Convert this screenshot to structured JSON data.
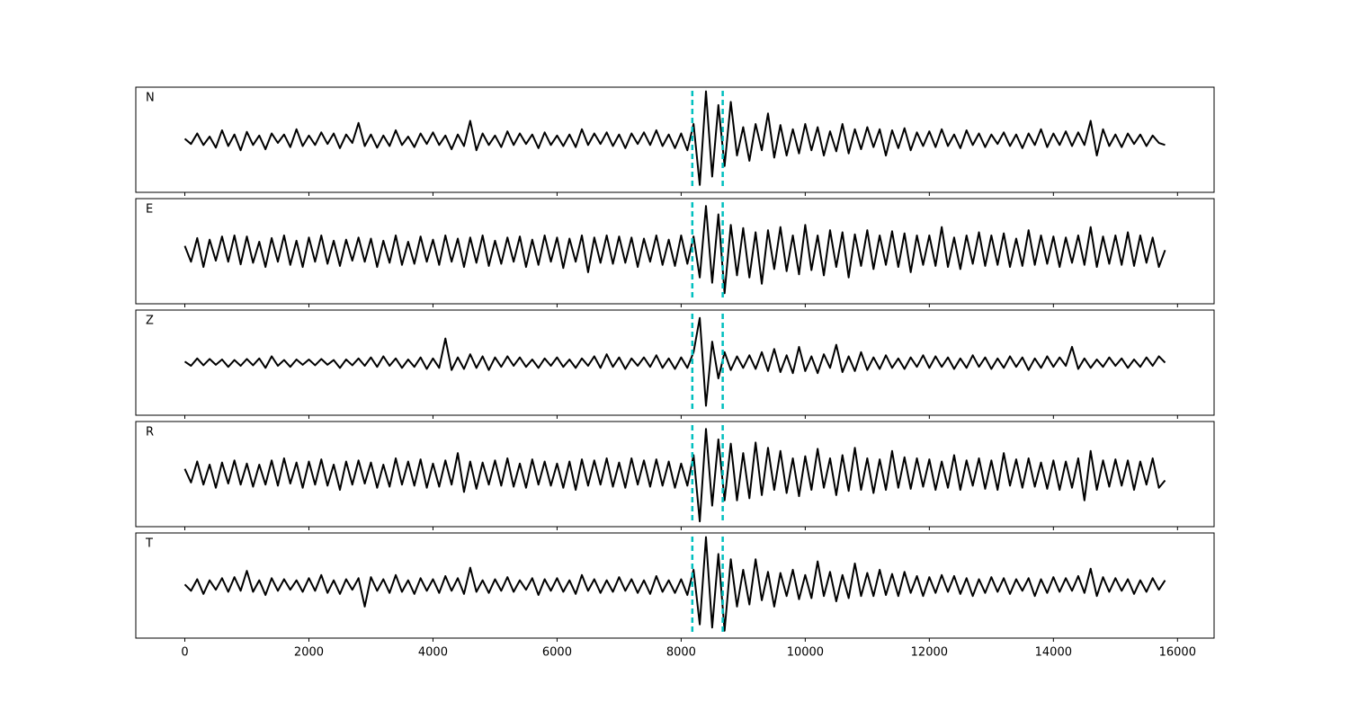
{
  "chart_data": {
    "type": "line",
    "layout": "stacked",
    "x": [
      0,
      100,
      200,
      300,
      400,
      500,
      600,
      700,
      800,
      900,
      1000,
      1100,
      1200,
      1300,
      1400,
      1500,
      1600,
      1700,
      1800,
      1900,
      2000,
      2100,
      2200,
      2300,
      2400,
      2500,
      2600,
      2700,
      2800,
      2900,
      3000,
      3100,
      3200,
      3300,
      3400,
      3500,
      3600,
      3700,
      3800,
      3900,
      4000,
      4100,
      4200,
      4300,
      4400,
      4500,
      4600,
      4700,
      4800,
      4900,
      5000,
      5100,
      5200,
      5300,
      5400,
      5500,
      5600,
      5700,
      5800,
      5900,
      6000,
      6100,
      6200,
      6300,
      6400,
      6500,
      6600,
      6700,
      6800,
      6900,
      7000,
      7100,
      7200,
      7300,
      7400,
      7500,
      7600,
      7700,
      7800,
      7900,
      8000,
      8100,
      8200,
      8300,
      8400,
      8500,
      8600,
      8700,
      8800,
      8900,
      9000,
      9100,
      9200,
      9300,
      9400,
      9500,
      9600,
      9700,
      9800,
      9900,
      10000,
      10100,
      10200,
      10300,
      10400,
      10500,
      10600,
      10700,
      10800,
      10900,
      11000,
      11100,
      11200,
      11300,
      11400,
      11500,
      11600,
      11700,
      11800,
      11900,
      12000,
      12100,
      12200,
      12300,
      12400,
      12500,
      12600,
      12700,
      12800,
      12900,
      13000,
      13100,
      13200,
      13300,
      13400,
      13500,
      13600,
      13700,
      13800,
      13900,
      14000,
      14100,
      14200,
      14300,
      14400,
      14500,
      14600,
      14700,
      14800,
      14900,
      15000,
      15100,
      15200,
      15300,
      15400,
      15500,
      15600,
      15700,
      15800
    ],
    "xlim": [
      -790,
      16590
    ],
    "xticks": [
      0,
      2000,
      4000,
      6000,
      8000,
      10000,
      12000,
      14000,
      16000
    ],
    "ylim": [
      -1,
      1
    ],
    "markers": [
      8180,
      8670
    ],
    "marker_color": "#00bfbf",
    "series": [
      {
        "name": "N",
        "color": "#000000",
        "values": [
          0.02,
          -0.08,
          0.12,
          -0.1,
          0.06,
          -0.15,
          0.18,
          -0.12,
          0.1,
          -0.2,
          0.15,
          -0.1,
          0.08,
          -0.18,
          0.12,
          -0.06,
          0.1,
          -0.14,
          0.2,
          -0.12,
          0.08,
          -0.1,
          0.14,
          -0.08,
          0.12,
          -0.16,
          0.1,
          -0.06,
          0.32,
          -0.12,
          0.1,
          -0.15,
          0.08,
          -0.12,
          0.18,
          -0.1,
          0.06,
          -0.14,
          0.12,
          -0.08,
          0.14,
          -0.1,
          0.08,
          -0.18,
          0.1,
          -0.12,
          0.36,
          -0.2,
          0.12,
          -0.1,
          0.08,
          -0.14,
          0.16,
          -0.1,
          0.12,
          -0.08,
          0.1,
          -0.16,
          0.14,
          -0.1,
          0.08,
          -0.12,
          0.1,
          -0.14,
          0.2,
          -0.1,
          0.12,
          -0.08,
          0.14,
          -0.12,
          0.1,
          -0.16,
          0.12,
          -0.08,
          0.14,
          -0.1,
          0.18,
          -0.12,
          0.1,
          -0.16,
          0.12,
          -0.2,
          0.3,
          -0.86,
          0.92,
          -0.7,
          0.66,
          -0.5,
          0.72,
          -0.3,
          0.24,
          -0.4,
          0.3,
          -0.2,
          0.5,
          -0.34,
          0.28,
          -0.3,
          0.2,
          -0.26,
          0.3,
          -0.2,
          0.24,
          -0.3,
          0.16,
          -0.22,
          0.3,
          -0.26,
          0.2,
          -0.18,
          0.24,
          -0.14,
          0.2,
          -0.3,
          0.18,
          -0.16,
          0.22,
          -0.2,
          0.14,
          -0.12,
          0.16,
          -0.14,
          0.2,
          -0.12,
          0.1,
          -0.16,
          0.18,
          -0.1,
          0.12,
          -0.14,
          0.1,
          -0.08,
          0.14,
          -0.12,
          0.1,
          -0.16,
          0.12,
          -0.1,
          0.2,
          -0.14,
          0.12,
          -0.1,
          0.16,
          -0.12,
          0.14,
          -0.1,
          0.36,
          -0.3,
          0.2,
          -0.12,
          0.1,
          -0.14,
          0.12,
          -0.08,
          0.1,
          -0.12,
          0.08,
          -0.06,
          -0.1
        ]
      },
      {
        "name": "E",
        "color": "#000000",
        "values": [
          0.1,
          -0.2,
          0.25,
          -0.3,
          0.22,
          -0.18,
          0.28,
          -0.2,
          0.3,
          -0.25,
          0.28,
          -0.22,
          0.18,
          -0.3,
          0.25,
          -0.2,
          0.3,
          -0.26,
          0.2,
          -0.3,
          0.26,
          -0.2,
          0.3,
          -0.24,
          0.2,
          -0.28,
          0.22,
          -0.18,
          0.26,
          -0.2,
          0.24,
          -0.3,
          0.2,
          -0.22,
          0.3,
          -0.26,
          0.18,
          -0.24,
          0.28,
          -0.2,
          0.22,
          -0.26,
          0.3,
          -0.2,
          0.24,
          -0.3,
          0.26,
          -0.22,
          0.3,
          -0.28,
          0.2,
          -0.24,
          0.26,
          -0.2,
          0.28,
          -0.3,
          0.22,
          -0.26,
          0.3,
          -0.2,
          0.26,
          -0.32,
          0.24,
          -0.2,
          0.3,
          -0.4,
          0.26,
          -0.22,
          0.3,
          -0.24,
          0.28,
          -0.22,
          0.26,
          -0.3,
          0.24,
          -0.2,
          0.3,
          -0.26,
          0.22,
          -0.28,
          0.3,
          -0.24,
          0.28,
          -0.5,
          0.86,
          -0.6,
          0.7,
          -0.8,
          0.5,
          -0.46,
          0.44,
          -0.5,
          0.36,
          -0.62,
          0.4,
          -0.34,
          0.46,
          -0.38,
          0.3,
          -0.44,
          0.5,
          -0.36,
          0.3,
          -0.46,
          0.4,
          -0.3,
          0.36,
          -0.5,
          0.32,
          -0.28,
          0.4,
          -0.34,
          0.3,
          -0.26,
          0.38,
          -0.3,
          0.34,
          -0.4,
          0.3,
          -0.26,
          0.3,
          -0.28,
          0.46,
          -0.3,
          0.26,
          -0.34,
          0.3,
          -0.24,
          0.36,
          -0.28,
          0.3,
          -0.26,
          0.34,
          -0.3,
          0.24,
          -0.28,
          0.4,
          -0.26,
          0.3,
          -0.24,
          0.28,
          -0.3,
          0.26,
          -0.22,
          0.3,
          -0.26,
          0.46,
          -0.3,
          0.28,
          -0.24,
          0.3,
          -0.26,
          0.36,
          -0.28,
          0.3,
          -0.22,
          0.26,
          -0.3,
          0.02
        ]
      },
      {
        "name": "Z",
        "color": "#000000",
        "values": [
          0.02,
          -0.06,
          0.08,
          -0.05,
          0.07,
          -0.04,
          0.06,
          -0.08,
          0.05,
          -0.06,
          0.07,
          -0.05,
          0.08,
          -0.1,
          0.12,
          -0.06,
          0.05,
          -0.08,
          0.06,
          -0.04,
          0.06,
          -0.05,
          0.07,
          -0.04,
          0.05,
          -0.1,
          0.06,
          -0.05,
          0.08,
          -0.06,
          0.1,
          -0.08,
          0.12,
          -0.06,
          0.08,
          -0.1,
          0.06,
          -0.08,
          0.1,
          -0.12,
          0.08,
          -0.1,
          0.46,
          -0.14,
          0.1,
          -0.12,
          0.16,
          -0.1,
          0.12,
          -0.14,
          0.1,
          -0.08,
          0.12,
          -0.06,
          0.1,
          -0.08,
          0.06,
          -0.1,
          0.08,
          -0.06,
          0.1,
          -0.08,
          0.06,
          -0.1,
          0.08,
          -0.06,
          0.12,
          -0.1,
          0.16,
          -0.08,
          0.1,
          -0.12,
          0.08,
          -0.06,
          0.1,
          -0.08,
          0.14,
          -0.1,
          0.08,
          -0.12,
          0.1,
          -0.1,
          0.2,
          0.85,
          -0.82,
          0.4,
          -0.3,
          0.2,
          -0.14,
          0.12,
          -0.1,
          0.14,
          -0.12,
          0.2,
          -0.16,
          0.26,
          -0.18,
          0.14,
          -0.2,
          0.3,
          -0.16,
          0.12,
          -0.2,
          0.16,
          -0.1,
          0.34,
          -0.18,
          0.12,
          -0.16,
          0.2,
          -0.14,
          0.1,
          -0.12,
          0.14,
          -0.1,
          0.08,
          -0.12,
          0.1,
          -0.08,
          0.14,
          -0.1,
          0.12,
          -0.08,
          0.1,
          -0.12,
          0.08,
          -0.1,
          0.14,
          -0.08,
          0.1,
          -0.12,
          0.08,
          -0.1,
          0.12,
          -0.08,
          0.1,
          -0.14,
          0.08,
          -0.1,
          0.12,
          -0.08,
          0.1,
          -0.06,
          0.3,
          -0.12,
          0.08,
          -0.1,
          0.06,
          -0.08,
          0.1,
          -0.06,
          0.08,
          -0.1,
          0.06,
          -0.08,
          0.1,
          -0.06,
          0.12,
          0.0
        ]
      },
      {
        "name": "R",
        "color": "#000000",
        "values": [
          0.1,
          -0.16,
          0.24,
          -0.2,
          0.18,
          -0.26,
          0.22,
          -0.18,
          0.26,
          -0.2,
          0.2,
          -0.24,
          0.18,
          -0.2,
          0.26,
          -0.22,
          0.3,
          -0.18,
          0.22,
          -0.26,
          0.24,
          -0.2,
          0.28,
          -0.22,
          0.18,
          -0.3,
          0.24,
          -0.2,
          0.26,
          -0.18,
          0.22,
          -0.26,
          0.18,
          -0.24,
          0.3,
          -0.2,
          0.24,
          -0.22,
          0.28,
          -0.26,
          0.2,
          -0.24,
          0.26,
          -0.2,
          0.4,
          -0.34,
          0.24,
          -0.28,
          0.22,
          -0.2,
          0.26,
          -0.22,
          0.3,
          -0.24,
          0.2,
          -0.26,
          0.28,
          -0.2,
          0.24,
          -0.22,
          0.2,
          -0.26,
          0.24,
          -0.3,
          0.28,
          -0.22,
          0.26,
          -0.2,
          0.3,
          -0.24,
          0.22,
          -0.26,
          0.3,
          -0.2,
          0.26,
          -0.24,
          0.28,
          -0.22,
          0.24,
          -0.26,
          0.2,
          -0.22,
          0.36,
          -0.9,
          0.86,
          -0.6,
          0.66,
          -0.5,
          0.58,
          -0.5,
          0.4,
          -0.46,
          0.6,
          -0.4,
          0.5,
          -0.3,
          0.44,
          -0.36,
          0.3,
          -0.42,
          0.34,
          -0.3,
          0.48,
          -0.26,
          0.3,
          -0.4,
          0.36,
          -0.32,
          0.5,
          -0.3,
          0.3,
          -0.36,
          0.28,
          -0.3,
          0.44,
          -0.26,
          0.32,
          -0.28,
          0.3,
          -0.24,
          0.28,
          -0.3,
          0.24,
          -0.26,
          0.36,
          -0.3,
          0.26,
          -0.22,
          0.3,
          -0.28,
          0.26,
          -0.3,
          0.4,
          -0.22,
          0.28,
          -0.26,
          0.3,
          -0.24,
          0.22,
          -0.28,
          0.26,
          -0.3,
          0.24,
          -0.26,
          0.3,
          -0.5,
          0.44,
          -0.3,
          0.26,
          -0.24,
          0.28,
          -0.22,
          0.26,
          -0.3,
          0.24,
          -0.2,
          0.3,
          -0.26,
          -0.12
        ]
      },
      {
        "name": "T",
        "color": "#000000",
        "values": [
          0.02,
          -0.1,
          0.12,
          -0.16,
          0.1,
          -0.08,
          0.14,
          -0.12,
          0.16,
          -0.1,
          0.28,
          -0.12,
          0.1,
          -0.18,
          0.14,
          -0.1,
          0.12,
          -0.08,
          0.1,
          -0.12,
          0.14,
          -0.1,
          0.2,
          -0.14,
          0.1,
          -0.16,
          0.12,
          -0.08,
          0.14,
          -0.4,
          0.16,
          -0.1,
          0.12,
          -0.14,
          0.2,
          -0.12,
          0.1,
          -0.16,
          0.14,
          -0.1,
          0.12,
          -0.14,
          0.18,
          -0.1,
          0.14,
          -0.16,
          0.34,
          -0.12,
          0.1,
          -0.14,
          0.12,
          -0.1,
          0.16,
          -0.12,
          0.1,
          -0.08,
          0.14,
          -0.18,
          0.12,
          -0.1,
          0.14,
          -0.12,
          0.1,
          -0.16,
          0.2,
          -0.1,
          0.12,
          -0.14,
          0.1,
          -0.12,
          0.16,
          -0.1,
          0.12,
          -0.14,
          0.1,
          -0.16,
          0.18,
          -0.12,
          0.1,
          -0.14,
          0.12,
          -0.18,
          0.3,
          -0.74,
          0.92,
          -0.8,
          0.6,
          -0.86,
          0.5,
          -0.4,
          0.3,
          -0.36,
          0.5,
          -0.28,
          0.26,
          -0.4,
          0.24,
          -0.2,
          0.3,
          -0.26,
          0.2,
          -0.24,
          0.46,
          -0.2,
          0.26,
          -0.3,
          0.2,
          -0.24,
          0.42,
          -0.2,
          0.24,
          -0.2,
          0.3,
          -0.18,
          0.22,
          -0.2,
          0.26,
          -0.14,
          0.18,
          -0.2,
          0.16,
          -0.14,
          0.2,
          -0.12,
          0.18,
          -0.16,
          0.14,
          -0.2,
          0.12,
          -0.14,
          0.16,
          -0.12,
          0.14,
          -0.16,
          0.12,
          -0.1,
          0.14,
          -0.2,
          0.12,
          -0.14,
          0.16,
          -0.12,
          0.14,
          -0.1,
          0.18,
          -0.14,
          0.32,
          -0.2,
          0.16,
          -0.12,
          0.14,
          -0.1,
          0.12,
          -0.16,
          0.1,
          -0.12,
          0.14,
          -0.08,
          0.1
        ]
      }
    ]
  }
}
